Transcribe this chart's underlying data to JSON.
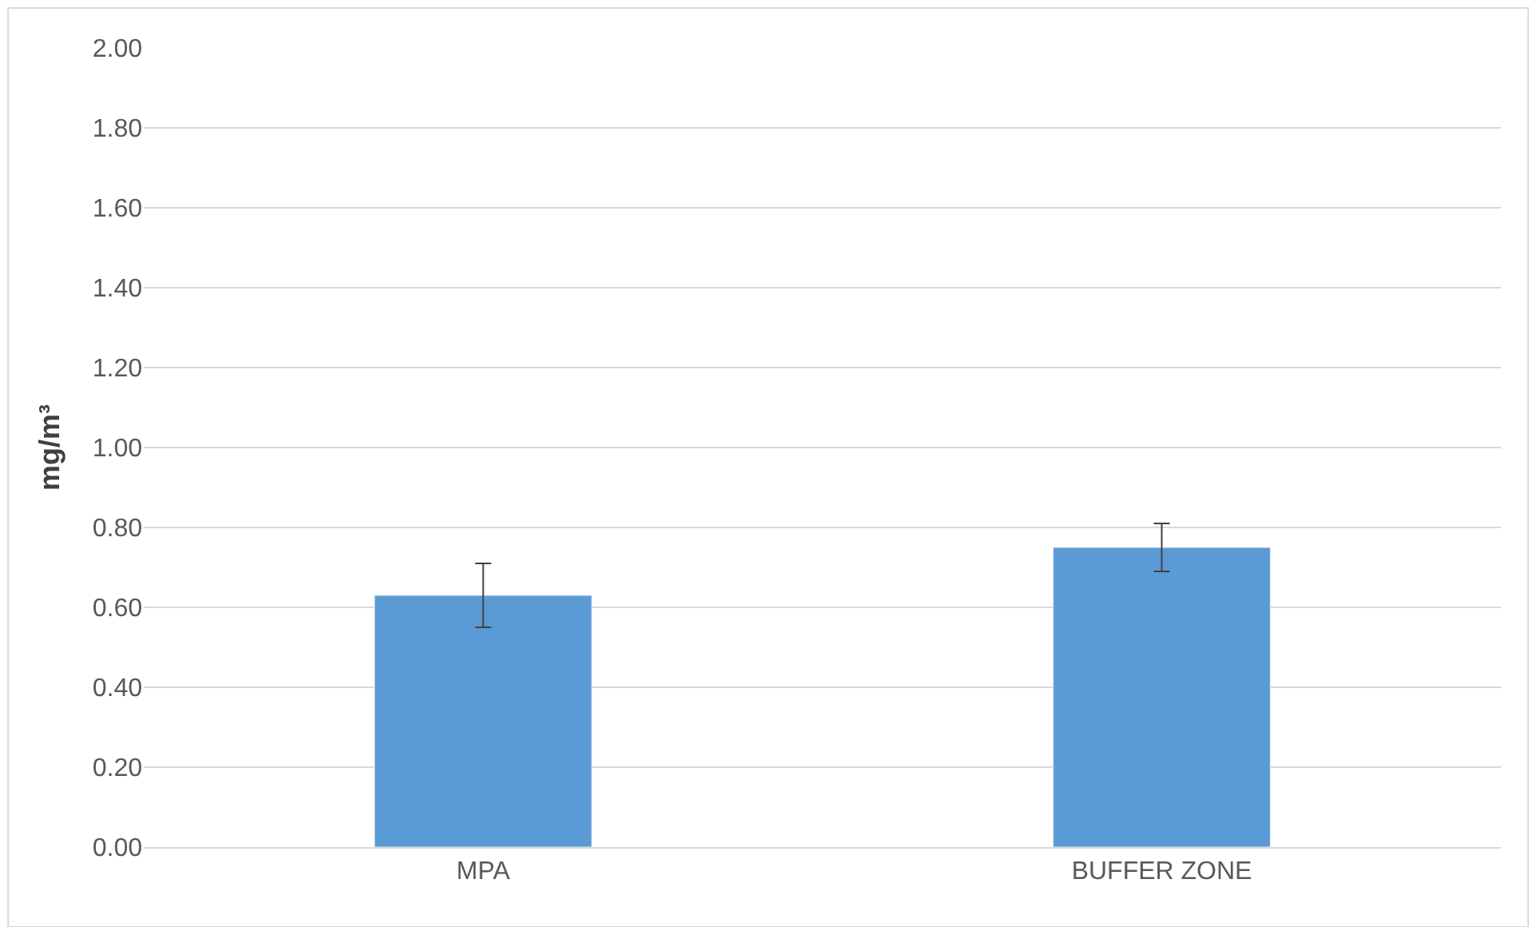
{
  "chart_data": {
    "type": "bar",
    "ylabel": "mg/m³",
    "categories": [
      "MPA",
      "BUFFER ZONE"
    ],
    "series": [
      {
        "color": "#5b9bd5",
        "values": [
          0.63,
          0.75
        ],
        "errors": [
          [
            0.55,
            0.71
          ],
          [
            0.69,
            0.81
          ]
        ]
      }
    ],
    "ylim": [
      0,
      2
    ],
    "yticks": [
      {
        "value": 0,
        "label": "0.00"
      },
      {
        "value": 0.2,
        "label": "0.20"
      },
      {
        "value": 0.4,
        "label": "0.40"
      },
      {
        "value": 0.6,
        "label": "0.60"
      },
      {
        "value": 0.8,
        "label": "0.80"
      },
      {
        "value": 1,
        "label": "1.00"
      },
      {
        "value": 1.2,
        "label": "1.20"
      },
      {
        "value": 1.4,
        "label": "1.40"
      },
      {
        "value": 1.6,
        "label": "1.60"
      },
      {
        "value": 1.8,
        "label": "1.80"
      },
      {
        "value": 2,
        "label": "2.00"
      }
    ],
    "grid": "y"
  }
}
